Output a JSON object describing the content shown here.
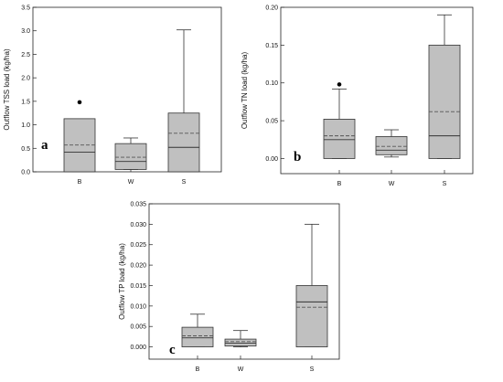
{
  "chart_data": [
    {
      "type": "box",
      "panel_label": "a",
      "ylabel": "Outflow TSS load (kg/ha)",
      "ylim": [
        0,
        3.5
      ],
      "yticks": [
        "0.0",
        "0.5",
        "1.0",
        "1.5",
        "2.0",
        "2.5",
        "3.0",
        "3.5"
      ],
      "categories": [
        "B",
        "W",
        "S"
      ],
      "boxes": [
        {
          "min": 0.0,
          "q1": 0.0,
          "median": 0.42,
          "mean": 0.57,
          "q3": 1.13,
          "max": 1.13,
          "outliers": [
            1.48
          ]
        },
        {
          "min": 0.05,
          "q1": 0.05,
          "median": 0.22,
          "mean": 0.31,
          "q3": 0.6,
          "max": 0.72,
          "outliers": []
        },
        {
          "min": 0.0,
          "q1": 0.0,
          "median": 0.52,
          "mean": 0.82,
          "q3": 1.25,
          "max": 3.02,
          "outliers": []
        }
      ]
    },
    {
      "type": "box",
      "panel_label": "b",
      "ylabel": "Outflow TN load (kg/ha)",
      "ylim": [
        -0.02,
        0.2
      ],
      "yticks": [
        "0.00",
        "0.05",
        "0.10",
        "0.15",
        "0.20"
      ],
      "categories": [
        "B",
        "W",
        "S"
      ],
      "boxes": [
        {
          "min": 0.0,
          "q1": 0.0,
          "median": 0.025,
          "mean": 0.03,
          "q3": 0.052,
          "max": 0.092,
          "outliers": [
            0.098
          ]
        },
        {
          "min": 0.002,
          "q1": 0.005,
          "median": 0.011,
          "mean": 0.016,
          "q3": 0.029,
          "max": 0.038,
          "outliers": []
        },
        {
          "min": 0.0,
          "q1": 0.0,
          "median": 0.03,
          "mean": 0.062,
          "q3": 0.15,
          "max": 0.19,
          "outliers": []
        }
      ]
    },
    {
      "type": "box",
      "panel_label": "c",
      "ylabel": "Outflow TP load (kg/ha)",
      "ylim": [
        -0.003,
        0.035
      ],
      "yticks": [
        "0.000",
        "0.005",
        "0.010",
        "0.015",
        "0.020",
        "0.025",
        "0.030",
        "0.035"
      ],
      "categories": [
        "B",
        "W",
        "S"
      ],
      "boxes": [
        {
          "min": 0.0,
          "q1": 0.0,
          "median": 0.0022,
          "mean": 0.0027,
          "q3": 0.0048,
          "max": 0.008,
          "outliers": []
        },
        {
          "min": 0.0,
          "q1": 0.0002,
          "median": 0.0009,
          "mean": 0.0013,
          "q3": 0.0019,
          "max": 0.004,
          "outliers": []
        },
        {
          "min": 0.0,
          "q1": 0.0,
          "median": 0.011,
          "mean": 0.0097,
          "q3": 0.015,
          "max": 0.03,
          "outliers": []
        }
      ]
    }
  ],
  "colors": {
    "box_fill": "#c0c0c0",
    "line": "#333333",
    "mean_line": "#555555"
  }
}
